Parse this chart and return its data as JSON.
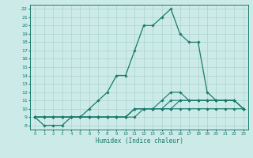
{
  "xlabel": "Humidex (Indice chaleur)",
  "bg_color": "#cceae8",
  "grid_color": "#aad4d2",
  "line_color": "#1a7a6e",
  "xlim": [
    -0.5,
    23.5
  ],
  "ylim": [
    7.5,
    22.5
  ],
  "xticks": [
    0,
    1,
    2,
    3,
    4,
    5,
    6,
    7,
    8,
    9,
    10,
    11,
    12,
    13,
    14,
    15,
    16,
    17,
    18,
    19,
    20,
    21,
    22,
    23
  ],
  "yticks": [
    8,
    9,
    10,
    11,
    12,
    13,
    14,
    15,
    16,
    17,
    18,
    19,
    20,
    21,
    22
  ],
  "line1": [
    9,
    8,
    8,
    8,
    9,
    9,
    10,
    11,
    12,
    14,
    14,
    17,
    20,
    20,
    21,
    22,
    19,
    18,
    18,
    12,
    11,
    11,
    11,
    null
  ],
  "line2": [
    9,
    9,
    9,
    9,
    9,
    9,
    9,
    9,
    9,
    9,
    9,
    10,
    10,
    10,
    11,
    12,
    12,
    11,
    11,
    11,
    11,
    11,
    11,
    10
  ],
  "line3": [
    9,
    9,
    9,
    9,
    9,
    9,
    9,
    9,
    9,
    9,
    9,
    10,
    10,
    10,
    10,
    11,
    11,
    11,
    11,
    11,
    11,
    11,
    11,
    10
  ],
  "line4": [
    9,
    9,
    9,
    9,
    9,
    9,
    9,
    9,
    9,
    9,
    9,
    10,
    10,
    10,
    10,
    10,
    11,
    11,
    11,
    11,
    11,
    11,
    11,
    10
  ],
  "line5": [
    9,
    9,
    9,
    9,
    9,
    9,
    9,
    9,
    9,
    9,
    9,
    9,
    10,
    10,
    10,
    10,
    10,
    10,
    10,
    10,
    10,
    10,
    10,
    10
  ]
}
